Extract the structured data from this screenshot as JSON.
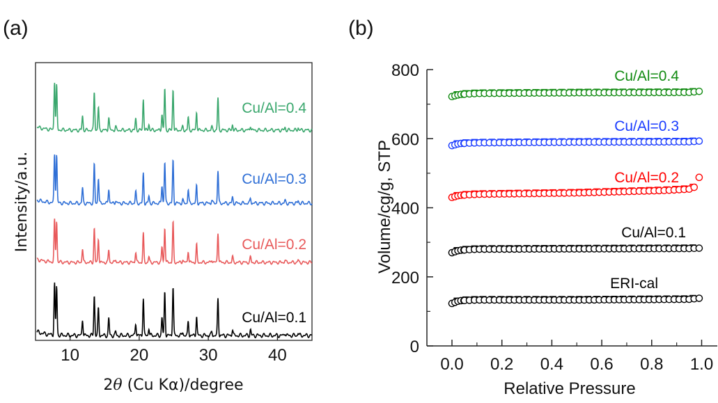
{
  "panels": {
    "a_label": "(a)",
    "b_label": "(b)"
  },
  "chart_data": [
    {
      "type": "line",
      "panel": "(a)",
      "xlabel_prefix": "2",
      "xlabel_theta": "θ",
      "xlabel_suffix": " (Cu Kα)/degree",
      "ylabel": "Intensity/a.u.",
      "xlim": [
        5,
        45
      ],
      "xticks": [
        10,
        20,
        30,
        40
      ],
      "yticks_shown": false,
      "peaks": [
        {
          "x": 7.75,
          "h": 0.73
        },
        {
          "x": 8.05,
          "h": 0.7
        },
        {
          "x": 11.8,
          "h": 0.22
        },
        {
          "x": 13.5,
          "h": 0.58
        },
        {
          "x": 14.1,
          "h": 0.38
        },
        {
          "x": 15.6,
          "h": 0.22
        },
        {
          "x": 16.6,
          "h": 0.05
        },
        {
          "x": 19.5,
          "h": 0.17
        },
        {
          "x": 20.6,
          "h": 0.48
        },
        {
          "x": 21.4,
          "h": 0.1
        },
        {
          "x": 23.3,
          "h": 0.26
        },
        {
          "x": 23.7,
          "h": 0.62
        },
        {
          "x": 24.9,
          "h": 0.64
        },
        {
          "x": 26.3,
          "h": 0.05
        },
        {
          "x": 27.1,
          "h": 0.2
        },
        {
          "x": 28.3,
          "h": 0.28
        },
        {
          "x": 30.5,
          "h": 0.05
        },
        {
          "x": 31.4,
          "h": 0.5
        },
        {
          "x": 33.5,
          "h": 0.09
        },
        {
          "x": 36.1,
          "h": 0.08
        },
        {
          "x": 41.1,
          "h": 0.04
        },
        {
          "x": 43.0,
          "h": 0.04
        }
      ],
      "series": [
        {
          "label": "Cu/Al=0.1",
          "color": "#000000"
        },
        {
          "label": "Cu/Al=0.2",
          "color": "#e8595a"
        },
        {
          "label": "Cu/Al=0.3",
          "color": "#2f6fd6"
        },
        {
          "label": "Cu/Al=0.4",
          "color": "#3aa76d"
        }
      ]
    },
    {
      "type": "scatter",
      "panel": "(b)",
      "xlabel": "Relative Pressure",
      "ylabel": "Volume/cg/g, STP",
      "xlim": [
        -0.05,
        1.02
      ],
      "ylim": [
        0,
        800
      ],
      "xticks": [
        "0.0",
        "0.2",
        "0.4",
        "0.6",
        "0.8",
        "1.0"
      ],
      "yticks": [
        "0",
        "200",
        "400",
        "600",
        "800"
      ],
      "series": [
        {
          "label": "ERI-cal",
          "color": "#000000",
          "p": [
            0.0,
            0.03,
            0.1,
            0.5,
            0.95,
            0.99
          ],
          "v": [
            123,
            131,
            133,
            133,
            135,
            138
          ]
        },
        {
          "label": "Cu/Al=0.1",
          "color": "#000000",
          "p": [
            0.0,
            0.03,
            0.1,
            0.5,
            0.95,
            0.99
          ],
          "v": [
            270,
            277,
            280,
            281,
            282,
            283
          ]
        },
        {
          "label": "Cu/Al=0.2",
          "color": "#ff0000",
          "p": [
            0.0,
            0.03,
            0.1,
            0.3,
            0.5,
            0.7,
            0.85,
            0.95,
            0.98,
            0.99
          ],
          "v": [
            430,
            436,
            439,
            441,
            443,
            447,
            450,
            454,
            462,
            488
          ]
        },
        {
          "label": "Cu/Al=0.3",
          "color": "#1a3cff",
          "p": [
            0.0,
            0.03,
            0.1,
            0.5,
            0.95,
            0.99
          ],
          "v": [
            580,
            586,
            588,
            590,
            591,
            593
          ]
        },
        {
          "label": "Cu/Al=0.4",
          "color": "#108a10",
          "p": [
            0.0,
            0.03,
            0.1,
            0.5,
            0.95,
            0.99
          ],
          "v": [
            722,
            728,
            731,
            733,
            734,
            737
          ]
        }
      ]
    }
  ]
}
